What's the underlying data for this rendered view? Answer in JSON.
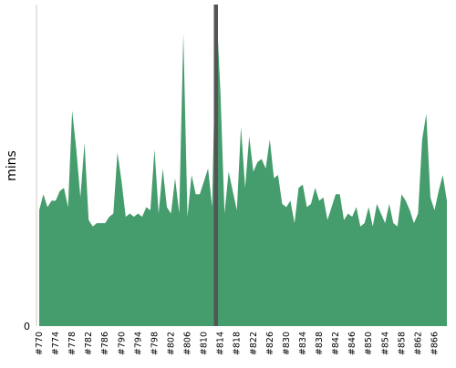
{
  "chart_data": {
    "type": "area",
    "ylabel": "mins",
    "color": "#459c6c",
    "categories": [
      "#770",
      null,
      null,
      null,
      "#774",
      null,
      null,
      null,
      "#778",
      null,
      null,
      null,
      "#782",
      null,
      null,
      null,
      "#786",
      null,
      null,
      null,
      "#790",
      null,
      null,
      null,
      "#794",
      null,
      null,
      null,
      "#798",
      null,
      null,
      null,
      "#802",
      null,
      null,
      null,
      "#806",
      null,
      null,
      null,
      "#810",
      null,
      null,
      null,
      "#814",
      null,
      null,
      null,
      "#818",
      null,
      null,
      null,
      "#822",
      null,
      null,
      null,
      "#826",
      null,
      null,
      null,
      "#830",
      null,
      null,
      null,
      "#834",
      null,
      null,
      null,
      "#838",
      null,
      null,
      null,
      "#842",
      null,
      null,
      null,
      "#846",
      null,
      null,
      null,
      "#850",
      null,
      null,
      null,
      "#854",
      null,
      null,
      null,
      "#858",
      null,
      null,
      null,
      "#862",
      null,
      null,
      null,
      "#866",
      null,
      null,
      null
    ],
    "values": [
      36,
      41,
      37,
      39,
      39,
      42,
      43,
      37,
      67,
      55,
      40,
      57,
      33,
      31,
      32,
      32,
      32,
      34,
      35,
      54,
      45,
      34,
      35,
      34,
      35,
      34,
      37,
      36,
      55,
      35,
      49,
      37,
      35,
      46,
      35,
      91,
      34,
      47,
      41,
      41,
      45,
      49,
      37,
      100,
      73,
      35,
      48,
      42,
      36,
      62,
      43,
      59,
      48,
      51,
      52,
      49,
      58,
      46,
      47,
      38,
      37,
      39,
      32,
      43,
      44,
      37,
      38,
      43,
      39,
      40,
      33,
      37,
      41,
      41,
      33,
      35,
      34,
      37,
      31,
      32,
      37,
      31,
      38,
      35,
      32,
      38,
      32,
      31,
      41,
      39,
      36,
      32,
      35,
      58,
      66,
      40,
      36,
      42,
      47,
      39
    ],
    "ylim": [
      0,
      100
    ],
    "yticks": [
      0
    ]
  }
}
